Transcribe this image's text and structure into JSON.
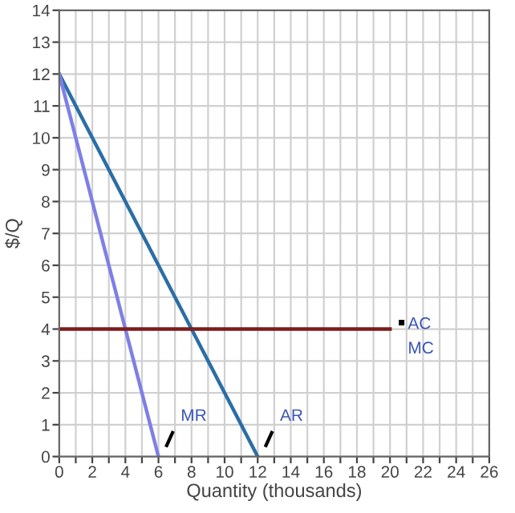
{
  "chart_data": {
    "type": "line",
    "xlabel": "Quantity (thousands)",
    "ylabel": "$/Q",
    "series": [
      {
        "name": "AR",
        "color": "#2b6ea6",
        "x": [
          0,
          12
        ],
        "values": [
          12,
          0
        ]
      },
      {
        "name": "MR",
        "color": "#7f7fe6",
        "x": [
          0,
          6
        ],
        "values": [
          12,
          0
        ]
      },
      {
        "name": "AC",
        "color": "#7b1c1c",
        "x": [
          0,
          20
        ],
        "values": [
          4,
          4
        ]
      }
    ],
    "annotations": [
      "MC"
    ],
    "xlim": [
      0,
      26
    ],
    "ylim": [
      0,
      14
    ],
    "xticks": [
      0,
      {
        "value": 1,
        "label": null
      },
      2,
      {
        "value": 3,
        "label": null
      },
      4,
      {
        "value": 5,
        "label": null
      },
      6,
      {
        "value": 7,
        "label": null
      },
      8,
      {
        "value": 9,
        "label": null
      },
      10,
      {
        "value": 11,
        "label": null
      },
      12,
      {
        "value": 13,
        "label": null
      },
      14,
      {
        "value": 15,
        "label": null
      },
      16,
      {
        "value": 17,
        "label": null
      },
      18,
      {
        "value": 19,
        "label": null
      },
      20,
      {
        "value": 21,
        "label": null
      },
      22,
      {
        "value": 23,
        "label": null
      },
      24,
      {
        "value": 25,
        "label": null
      },
      26
    ],
    "yticks": [
      0,
      1,
      2,
      3,
      4,
      5,
      6,
      7,
      8,
      9,
      10,
      11,
      12,
      13,
      14
    ],
    "grid": true,
    "marker": "none",
    "line_style": "solid"
  }
}
